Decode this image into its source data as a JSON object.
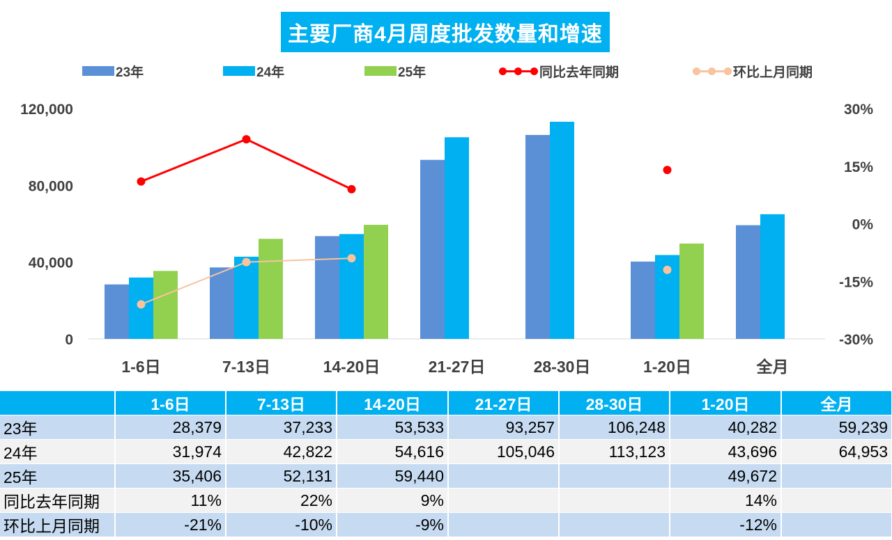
{
  "colors": {
    "y23": "#5b8fd6",
    "y24": "#00b0f0",
    "y25": "#92d050",
    "yoy": "#ff0000",
    "mom": "#f8c39d",
    "title_bg": "#00b0f0",
    "axis_text": "#404040"
  },
  "legend": [
    {
      "label": "23年",
      "kind": "bar",
      "color": "#5b8fd6"
    },
    {
      "label": "24年",
      "kind": "bar",
      "color": "#00b0f0"
    },
    {
      "label": "25年",
      "kind": "bar",
      "color": "#92d050"
    },
    {
      "label": "同比去年同期",
      "kind": "line",
      "color": "#ff0000"
    },
    {
      "label": "环比上月同期",
      "kind": "line",
      "color": "#f8c39d"
    }
  ],
  "chart_data": {
    "type": "bar",
    "title": "主要厂商4月周度批发数量和增速",
    "categories": [
      "1-6日",
      "7-13日",
      "14-20日",
      "21-27日",
      "28-30日",
      "1-20日",
      "全月"
    ],
    "series": [
      {
        "name": "23年",
        "type": "bar",
        "axis": "left",
        "values": [
          28379,
          37233,
          53533,
          93257,
          106248,
          40282,
          59239
        ],
        "labels": [
          "28,379",
          "37,233",
          "53,533",
          "93,257",
          "106,248",
          "40,282",
          "59,239"
        ]
      },
      {
        "name": "24年",
        "type": "bar",
        "axis": "left",
        "values": [
          31974,
          42822,
          54616,
          105046,
          113123,
          43696,
          64953
        ],
        "labels": [
          "31,974",
          "42,822",
          "54,616",
          "105,046",
          "113,123",
          "43,696",
          "64,953"
        ]
      },
      {
        "name": "25年",
        "type": "bar",
        "axis": "left",
        "values": [
          35406,
          52131,
          59440,
          null,
          null,
          49672,
          null
        ],
        "labels": [
          "35,406",
          "52,131",
          "59,440",
          "",
          "",
          "49,672",
          ""
        ]
      },
      {
        "name": "同比去年同期",
        "type": "line",
        "axis": "right",
        "values": [
          11,
          22,
          9,
          null,
          null,
          14,
          null
        ],
        "labels": [
          "11%",
          "22%",
          "9%",
          "",
          "",
          "14%",
          ""
        ]
      },
      {
        "name": "环比上月同期",
        "type": "line",
        "axis": "right",
        "values": [
          -21,
          -10,
          -9,
          null,
          null,
          -12,
          null
        ],
        "labels": [
          "-21%",
          "-10%",
          "-9%",
          "",
          "",
          "-12%",
          ""
        ]
      }
    ],
    "left_axis": {
      "ylim": [
        0,
        120000
      ],
      "ticks": [
        0,
        40000,
        80000,
        120000
      ],
      "tick_labels": [
        "0",
        "40,000",
        "80,000",
        "120,000"
      ]
    },
    "right_axis": {
      "ylim": [
        -30,
        30
      ],
      "ticks": [
        -30,
        -15,
        0,
        15,
        30
      ],
      "tick_labels": [
        "-30%",
        "-15%",
        "0%",
        "15%",
        "30%"
      ]
    },
    "legend_position": "top",
    "grid": false
  },
  "table": {
    "corner": ""
  }
}
